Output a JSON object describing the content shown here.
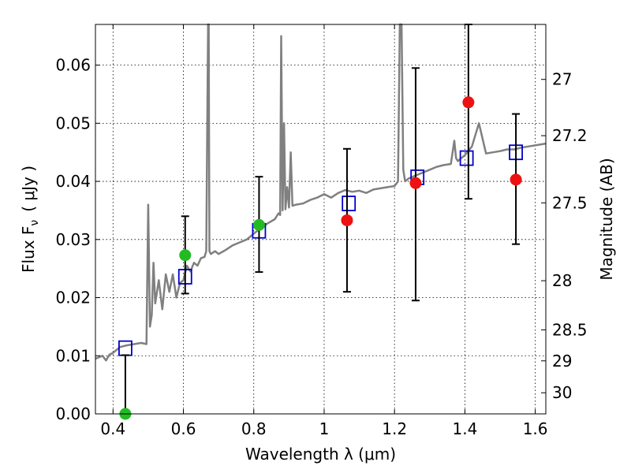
{
  "chart_data": {
    "type": "scatter",
    "xlabel": "Wavelength  λ (μm)",
    "ylabel": "Flux  F",
    "ylabel_sub": "ν",
    "ylabel_unit": "( μJy )",
    "ylabel_right": "Magnitude (AB)",
    "xlim": [
      0.35,
      1.63
    ],
    "ylim": [
      0.0,
      0.067
    ],
    "grid": true,
    "x_ticks": [
      {
        "value": 0.4,
        "label": "0.4"
      },
      {
        "value": 0.6,
        "label": "0.6"
      },
      {
        "value": 0.8,
        "label": "0.8"
      },
      {
        "value": 1.0,
        "label": "1"
      },
      {
        "value": 1.2,
        "label": "1.2"
      },
      {
        "value": 1.4,
        "label": "1.4"
      },
      {
        "value": 1.6,
        "label": "1.6"
      }
    ],
    "y_ticks": [
      {
        "value": 0.0,
        "label": "0.00"
      },
      {
        "value": 0.01,
        "label": "0.01"
      },
      {
        "value": 0.02,
        "label": "0.02"
      },
      {
        "value": 0.03,
        "label": "0.03"
      },
      {
        "value": 0.04,
        "label": "0.04"
      },
      {
        "value": 0.05,
        "label": "0.05"
      },
      {
        "value": 0.06,
        "label": "0.06"
      }
    ],
    "right_ticks": [
      {
        "value": 27.0,
        "label": "27"
      },
      {
        "value": 27.2,
        "label": "27.2"
      },
      {
        "value": 27.5,
        "label": "27.5"
      },
      {
        "value": 28.0,
        "label": "28"
      },
      {
        "value": 28.5,
        "label": "28.5"
      },
      {
        "value": 29.0,
        "label": "29"
      },
      {
        "value": 30.0,
        "label": "30"
      }
    ],
    "series": [
      {
        "kind": "line",
        "color": "#808080",
        "x": [
          0.35,
          0.37,
          0.38,
          0.39,
          0.4,
          0.42,
          0.44,
          0.46,
          0.48,
          0.495,
          0.5,
          0.505,
          0.51,
          0.515,
          0.52,
          0.53,
          0.54,
          0.55,
          0.56,
          0.57,
          0.58,
          0.59,
          0.6,
          0.61,
          0.62,
          0.63,
          0.64,
          0.65,
          0.66,
          0.665,
          0.67,
          0.672,
          0.674,
          0.678,
          0.69,
          0.7,
          0.72,
          0.74,
          0.76,
          0.78,
          0.8,
          0.82,
          0.84,
          0.86,
          0.87,
          0.875,
          0.878,
          0.882,
          0.886,
          0.89,
          0.895,
          0.9,
          0.905,
          0.91,
          0.92,
          0.94,
          0.96,
          0.98,
          1.0,
          1.02,
          1.04,
          1.06,
          1.08,
          1.1,
          1.12,
          1.14,
          1.16,
          1.18,
          1.2,
          1.21,
          1.215,
          1.22,
          1.225,
          1.23,
          1.24,
          1.26,
          1.28,
          1.3,
          1.32,
          1.34,
          1.36,
          1.37,
          1.375,
          1.38,
          1.39,
          1.4,
          1.42,
          1.44,
          1.46,
          1.48,
          1.5,
          1.52,
          1.54,
          1.56,
          1.58,
          1.6,
          1.63
        ],
        "y": [
          0.0095,
          0.01,
          0.0092,
          0.0102,
          0.0105,
          0.0115,
          0.0118,
          0.012,
          0.0122,
          0.012,
          0.036,
          0.015,
          0.017,
          0.026,
          0.019,
          0.023,
          0.018,
          0.024,
          0.021,
          0.024,
          0.02,
          0.0225,
          0.023,
          0.0255,
          0.0245,
          0.026,
          0.0255,
          0.0268,
          0.027,
          0.028,
          0.067,
          0.0672,
          0.028,
          0.0275,
          0.028,
          0.0275,
          0.0282,
          0.029,
          0.0295,
          0.03,
          0.031,
          0.032,
          0.0328,
          0.0335,
          0.0345,
          0.0342,
          0.065,
          0.035,
          0.05,
          0.0352,
          0.039,
          0.0355,
          0.045,
          0.0358,
          0.036,
          0.0362,
          0.0368,
          0.0372,
          0.0378,
          0.0372,
          0.038,
          0.0385,
          0.0382,
          0.0384,
          0.038,
          0.0386,
          0.0388,
          0.039,
          0.0392,
          0.04,
          0.067,
          0.0672,
          0.042,
          0.04,
          0.0405,
          0.041,
          0.0415,
          0.042,
          0.0425,
          0.0428,
          0.043,
          0.047,
          0.044,
          0.0435,
          0.044,
          0.0445,
          0.046,
          0.05,
          0.0448,
          0.045,
          0.0452,
          0.0455,
          0.0455,
          0.0458,
          0.046,
          0.0462,
          0.0465
        ]
      },
      {
        "kind": "squares",
        "color": "#0000cc",
        "x": [
          0.435,
          0.605,
          0.815,
          1.07,
          1.265,
          1.405,
          1.545
        ],
        "y": [
          0.0113,
          0.0236,
          0.0315,
          0.0362,
          0.0407,
          0.044,
          0.045
        ]
      },
      {
        "kind": "circles",
        "color": "#22bb22",
        "x": [
          0.435,
          0.605,
          0.815
        ],
        "y": [
          0.0,
          0.0273,
          0.0325
        ],
        "err_low": [
          0.0,
          0.0207,
          0.0244
        ],
        "err_high": [
          0.0101,
          0.034,
          0.0408
        ]
      },
      {
        "kind": "circles",
        "color": "#ee1111",
        "x": [
          1.065,
          1.26,
          1.41,
          1.545
        ],
        "y": [
          0.0333,
          0.0397,
          0.0536,
          0.0403
        ],
        "err_low": [
          0.021,
          0.0195,
          0.037,
          0.0292
        ],
        "err_high": [
          0.0456,
          0.0595,
          0.07,
          0.0516
        ]
      }
    ]
  }
}
